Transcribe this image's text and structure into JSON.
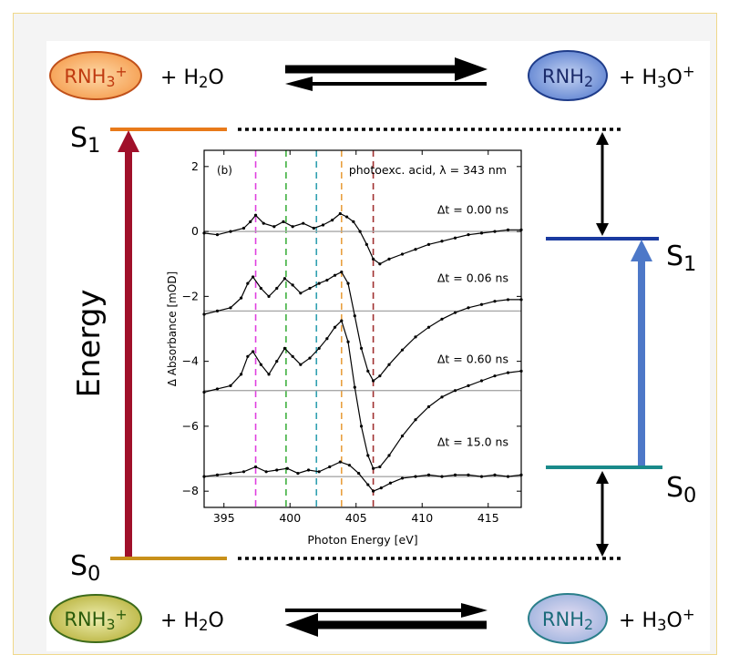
{
  "top_equation": {
    "left_species": "RNH3+",
    "left_plus": "+ H2O",
    "right_species": "RNH2",
    "right_plus": "+ H3O+"
  },
  "bottom_equation": {
    "left_species": "RNH3+",
    "left_plus": "+ H2O",
    "right_species": "RNH2",
    "right_plus": "+ H3O+"
  },
  "left_levels": {
    "upper": "S1",
    "lower": "S0"
  },
  "right_levels": {
    "upper": "S1",
    "lower": "S0"
  },
  "energy_label": "Energy",
  "colors": {
    "acid_top_fill": "#f59a4a",
    "acid_top_border": "#c0501a",
    "base_top_fill": "#5a7fd0",
    "base_top_border": "#1f3c8a",
    "acid_bottom_fill": "#b7b13a",
    "acid_bottom_border": "#3d6b1a",
    "base_bottom_fill": "#9ab0dc",
    "base_bottom_border": "#2a7f8a",
    "left_arrow": "#a0102a",
    "right_arrow": "#4d78c8",
    "left_s1_line": "#e87a1a",
    "left_s0_line": "#c8901a",
    "right_s1_line": "#1a3aa0",
    "right_s0_line": "#1a8a8a"
  },
  "chart_data": {
    "type": "line",
    "panel_label": "(b)",
    "annotation": "photoexc. acid, λ = 343 nm",
    "xlabel": "Photon Energy [eV]",
    "ylabel": "Δ Absorbance [mOD]",
    "xlim": [
      393.5,
      417.5
    ],
    "ylim": [
      -8.5,
      2.5
    ],
    "xticks": [
      395,
      400,
      405,
      410,
      415
    ],
    "yticks": [
      2,
      0,
      -2,
      -4,
      -6,
      -8
    ],
    "reference_lines": [
      {
        "x": 397.4,
        "color": "#e040e0"
      },
      {
        "x": 399.7,
        "color": "#40b040"
      },
      {
        "x": 402.0,
        "color": "#30a0b0"
      },
      {
        "x": 403.9,
        "color": "#e8a040"
      },
      {
        "x": 406.3,
        "color": "#a03030"
      }
    ],
    "series": [
      {
        "name": "Δt = 0.00 ns",
        "baseline": 0.0,
        "x": [
          393.5,
          394.5,
          395.5,
          396.5,
          397.0,
          397.4,
          398.0,
          398.8,
          399.5,
          400.2,
          401.0,
          401.8,
          402.5,
          403.2,
          403.8,
          404.3,
          404.8,
          405.3,
          405.8,
          406.3,
          406.8,
          407.5,
          408.5,
          409.5,
          410.5,
          411.5,
          412.5,
          413.5,
          414.5,
          415.5,
          416.5,
          417.5
        ],
        "y": [
          -0.05,
          -0.1,
          0.0,
          0.1,
          0.3,
          0.5,
          0.25,
          0.15,
          0.3,
          0.15,
          0.25,
          0.1,
          0.2,
          0.35,
          0.55,
          0.45,
          0.3,
          0.0,
          -0.4,
          -0.85,
          -1.0,
          -0.85,
          -0.7,
          -0.55,
          -0.4,
          -0.3,
          -0.2,
          -0.1,
          -0.05,
          0.0,
          0.05,
          0.05
        ]
      },
      {
        "name": "Δt = 0.06 ns",
        "baseline": -2.45,
        "x": [
          393.5,
          394.5,
          395.5,
          396.3,
          396.8,
          397.2,
          397.8,
          398.4,
          399.0,
          399.6,
          400.2,
          400.8,
          401.5,
          402.2,
          402.8,
          403.4,
          403.9,
          404.4,
          404.9,
          405.4,
          405.9,
          406.3,
          406.8,
          407.5,
          408.5,
          409.5,
          410.5,
          411.5,
          412.5,
          413.5,
          414.5,
          415.5,
          416.5,
          417.5
        ],
        "y": [
          -2.55,
          -2.45,
          -2.35,
          -2.05,
          -1.6,
          -1.4,
          -1.75,
          -2.0,
          -1.75,
          -1.45,
          -1.65,
          -1.9,
          -1.75,
          -1.6,
          -1.5,
          -1.35,
          -1.25,
          -1.6,
          -2.6,
          -3.6,
          -4.3,
          -4.6,
          -4.45,
          -4.1,
          -3.65,
          -3.25,
          -2.95,
          -2.7,
          -2.5,
          -2.35,
          -2.25,
          -2.15,
          -2.1,
          -2.1
        ]
      },
      {
        "name": "Δt = 0.60 ns",
        "baseline": -4.9,
        "x": [
          393.5,
          394.5,
          395.5,
          396.3,
          396.8,
          397.2,
          397.8,
          398.4,
          399.0,
          399.6,
          400.2,
          400.8,
          401.5,
          402.2,
          402.8,
          403.4,
          403.9,
          404.4,
          404.9,
          405.4,
          405.9,
          406.3,
          406.8,
          407.5,
          408.5,
          409.5,
          410.5,
          411.5,
          412.5,
          413.5,
          414.5,
          415.5,
          416.5,
          417.5
        ],
        "y": [
          -4.95,
          -4.85,
          -4.75,
          -4.4,
          -3.85,
          -3.7,
          -4.1,
          -4.4,
          -4.0,
          -3.6,
          -3.85,
          -4.1,
          -3.9,
          -3.6,
          -3.3,
          -2.95,
          -2.75,
          -3.4,
          -4.8,
          -6.0,
          -6.9,
          -7.3,
          -7.25,
          -6.9,
          -6.3,
          -5.8,
          -5.4,
          -5.1,
          -4.9,
          -4.75,
          -4.6,
          -4.45,
          -4.35,
          -4.3
        ]
      },
      {
        "name": "Δt = 15.0 ns",
        "baseline": -7.55,
        "x": [
          393.5,
          394.5,
          395.5,
          396.5,
          397.4,
          398.2,
          399.0,
          399.8,
          400.6,
          401.4,
          402.2,
          403.0,
          403.8,
          404.5,
          405.2,
          405.9,
          406.3,
          406.9,
          407.6,
          408.5,
          409.5,
          410.5,
          411.5,
          412.5,
          413.5,
          414.5,
          415.5,
          416.5,
          417.5
        ],
        "y": [
          -7.55,
          -7.5,
          -7.45,
          -7.4,
          -7.25,
          -7.4,
          -7.35,
          -7.3,
          -7.45,
          -7.35,
          -7.4,
          -7.25,
          -7.1,
          -7.2,
          -7.45,
          -7.8,
          -8.0,
          -7.9,
          -7.75,
          -7.6,
          -7.55,
          -7.5,
          -7.55,
          -7.5,
          -7.5,
          -7.55,
          -7.5,
          -7.55,
          -7.5
        ]
      }
    ]
  }
}
